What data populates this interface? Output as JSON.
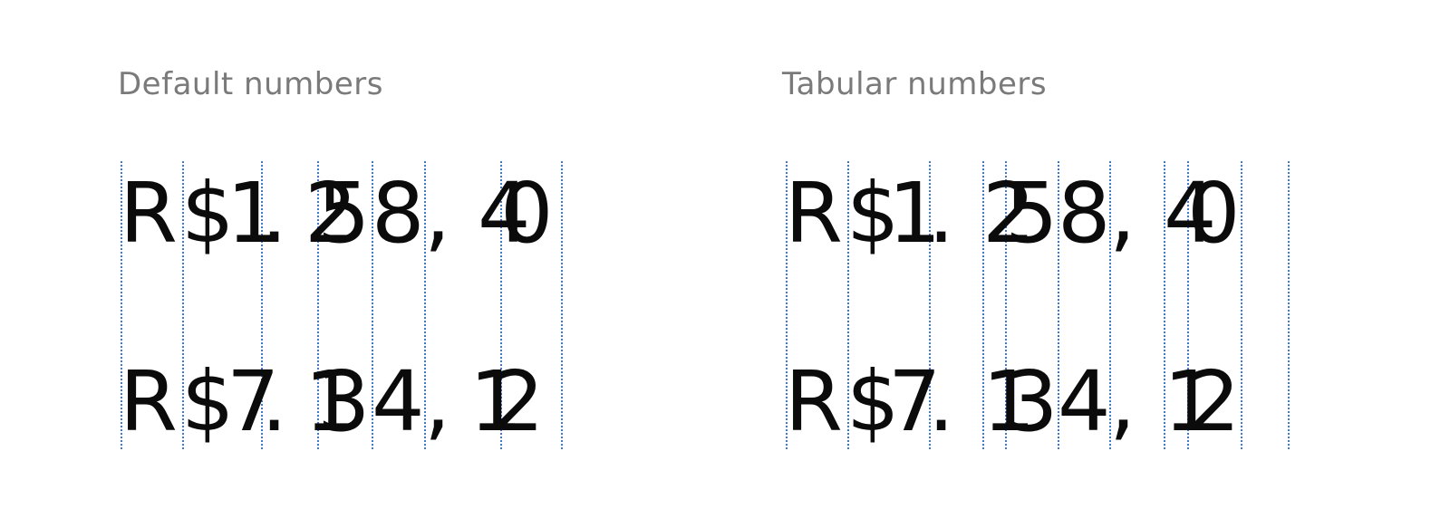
{
  "panels": {
    "default": {
      "heading": "Default numbers",
      "rows": [
        "R$ 1.258,40",
        "R$ 7.134,12"
      ]
    },
    "tabular": {
      "heading": "Tabular numbers",
      "rows": [
        "R$ 1.258,40",
        "R$ 7.134,12"
      ]
    }
  },
  "colors": {
    "heading": "#7a7a7a",
    "numbers": "#0b0b0b",
    "guides": "#3b78d8",
    "background": "#ffffff"
  }
}
